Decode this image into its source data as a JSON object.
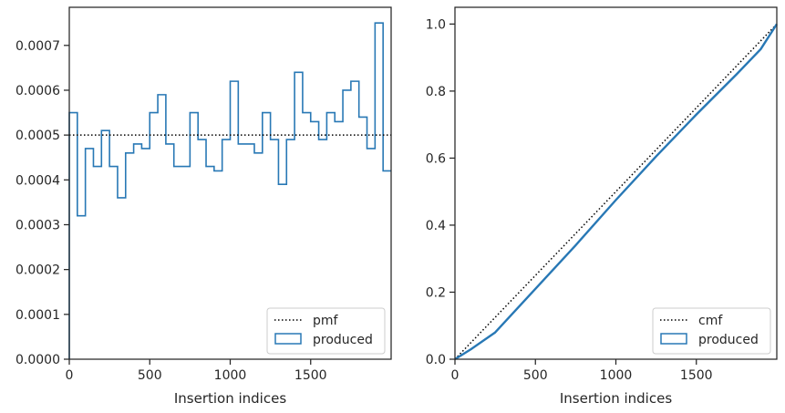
{
  "colors": {
    "produced": "#2878b5",
    "reference": "#000000",
    "axes": "#262626",
    "legend_border": "#cccccc"
  },
  "chart_data": [
    {
      "type": "step-histogram",
      "xlabel": "Insertion indices",
      "ylabel": "",
      "xlim": [
        0,
        2000
      ],
      "ylim": [
        0,
        0.000785
      ],
      "x_ticks": [
        0,
        500,
        1000,
        1500
      ],
      "x_tick_labels": [
        "0",
        "500",
        "1000",
        "1500"
      ],
      "y_ticks": [
        0,
        0.0001,
        0.0002,
        0.0003,
        0.0004,
        0.0005,
        0.0006,
        0.0007
      ],
      "y_tick_labels": [
        "0.0000",
        "0.0001",
        "0.0002",
        "0.0003",
        "0.0004",
        "0.0005",
        "0.0006",
        "0.0007"
      ],
      "legend_position": "lower-right",
      "legend": [
        "pmf",
        "produced"
      ],
      "bin_width": 50,
      "pmf_value": 0.0005,
      "series": [
        {
          "name": "produced",
          "values": [
            0.00055,
            0.00032,
            0.00047,
            0.00043,
            0.00051,
            0.00043,
            0.00036,
            0.00046,
            0.00048,
            0.00047,
            0.00055,
            0.00059,
            0.00048,
            0.00043,
            0.00043,
            0.00055,
            0.00049,
            0.00043,
            0.00042,
            0.00049,
            0.00062,
            0.00048,
            0.00048,
            0.00046,
            0.00055,
            0.00049,
            0.00039,
            0.00049,
            0.00064,
            0.00055,
            0.00053,
            0.00049,
            0.00055,
            0.00053,
            0.0006,
            0.00062,
            0.00054,
            0.00047,
            0.00075,
            0.00042
          ]
        },
        {
          "name": "pmf",
          "values": [
            0.0005
          ]
        }
      ]
    },
    {
      "type": "step-cumulative",
      "xlabel": "Insertion indices",
      "ylabel": "",
      "xlim": [
        0,
        2000
      ],
      "ylim": [
        0,
        1.05
      ],
      "x_ticks": [
        0,
        500,
        1000,
        1500
      ],
      "x_tick_labels": [
        "0",
        "500",
        "1000",
        "1500"
      ],
      "y_ticks": [
        0,
        0.2,
        0.4,
        0.6,
        0.8,
        1.0
      ],
      "y_tick_labels": [
        "0.0",
        "0.2",
        "0.4",
        "0.6",
        "0.8",
        "1.0"
      ],
      "legend_position": "lower-right",
      "legend": [
        "cmf",
        "produced"
      ],
      "series": [
        {
          "name": "cmf",
          "x": [
            0,
            2000
          ],
          "values": [
            0,
            1
          ]
        },
        {
          "name": "produced",
          "x": [
            0,
            50,
            100,
            250,
            500,
            750,
            1000,
            1250,
            1500,
            1750,
            1900,
            2000
          ],
          "values": [
            0,
            0.015,
            0.03,
            0.08,
            0.21,
            0.34,
            0.475,
            0.605,
            0.73,
            0.85,
            0.925,
            1.0
          ]
        }
      ]
    }
  ]
}
